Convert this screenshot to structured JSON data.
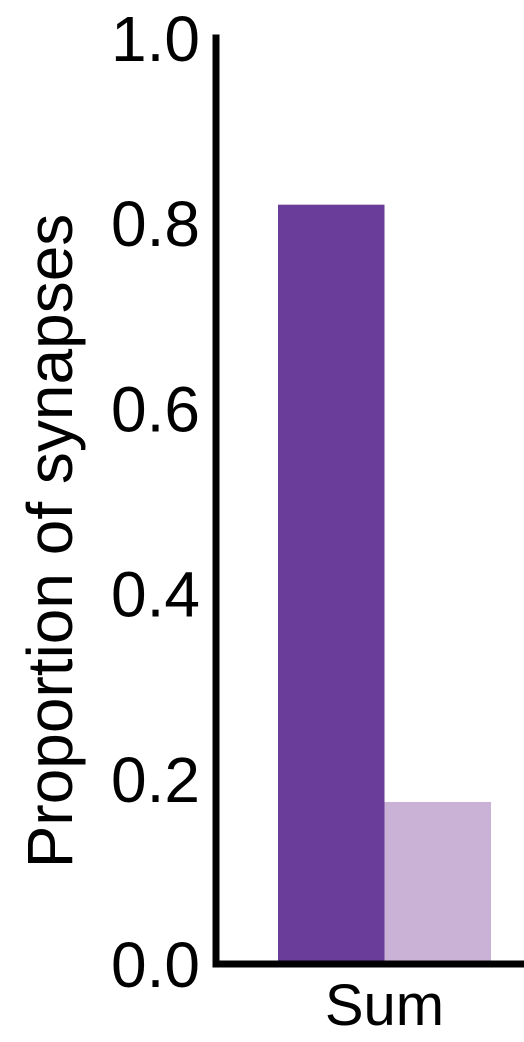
{
  "chart_data": {
    "type": "bar",
    "categories": [
      "Sum"
    ],
    "series": [
      {
        "values": [
          0.82
        ],
        "color": "#6a3d9a"
      },
      {
        "values": [
          0.175
        ],
        "color": "#cab2d6"
      }
    ],
    "ylabel": "Proportion of synapses",
    "ylim": [
      0.0,
      1.0
    ],
    "yticks": [
      "0.0",
      "0.2",
      "0.4",
      "0.6",
      "0.8",
      "1.0"
    ],
    "grid": false
  }
}
